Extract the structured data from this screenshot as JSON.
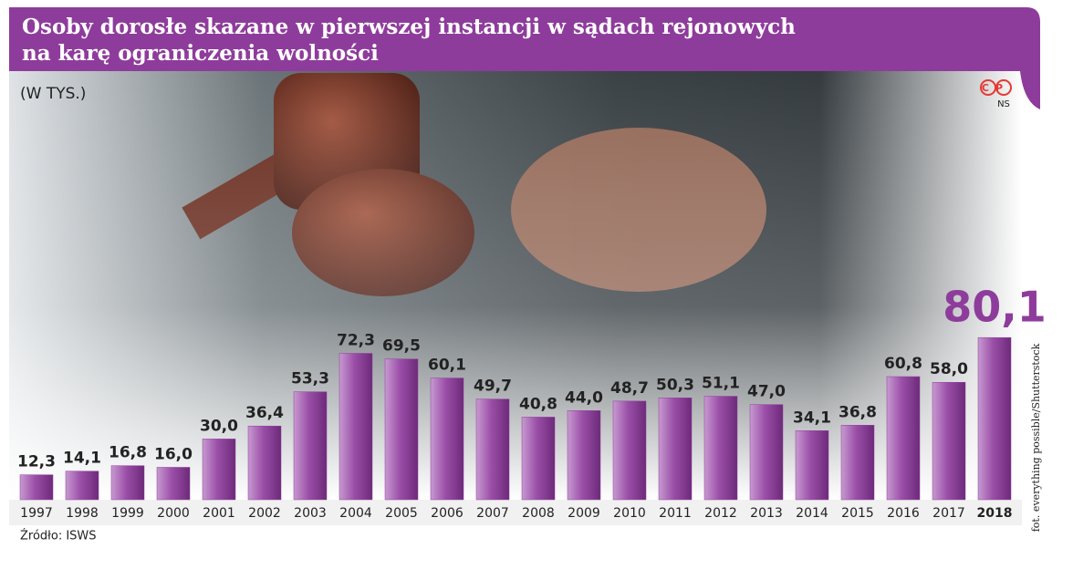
{
  "chart_data": {
    "type": "bar",
    "title": "Osoby dorosłe skazane w pierwszej instancji w sądach rejonowych",
    "title_line2": "na karę ograniczenia wolności",
    "subtitle": "(W TYS.)",
    "source": "Źródło: ISWS",
    "photo_credit": "fot. everything possible/Shutterstock",
    "logo": "CP",
    "logo_sub": "NS",
    "categories": [
      "1997",
      "1998",
      "1999",
      "2000",
      "2001",
      "2002",
      "2003",
      "2004",
      "2005",
      "2006",
      "2007",
      "2008",
      "2009",
      "2010",
      "2011",
      "2012",
      "2013",
      "2014",
      "2015",
      "2016",
      "2017",
      "2018"
    ],
    "values": [
      12.3,
      14.1,
      16.8,
      16.0,
      30.0,
      36.4,
      53.3,
      72.3,
      69.5,
      60.1,
      49.7,
      40.8,
      44.0,
      48.7,
      50.3,
      51.1,
      47.0,
      34.1,
      36.8,
      60.8,
      58.0,
      80.1
    ],
    "value_labels": [
      "12,3",
      "14,1",
      "16,8",
      "16,0",
      "30,0",
      "36,4",
      "53,3",
      "72,3",
      "69,5",
      "60,1",
      "49,7",
      "40,8",
      "44,0",
      "48,7",
      "50,3",
      "51,1",
      "47,0",
      "34,1",
      "36,8",
      "60,8",
      "58,0",
      "80,1"
    ],
    "color": "#8e3c9b",
    "highlight_color": "#8e3c9b"
  }
}
